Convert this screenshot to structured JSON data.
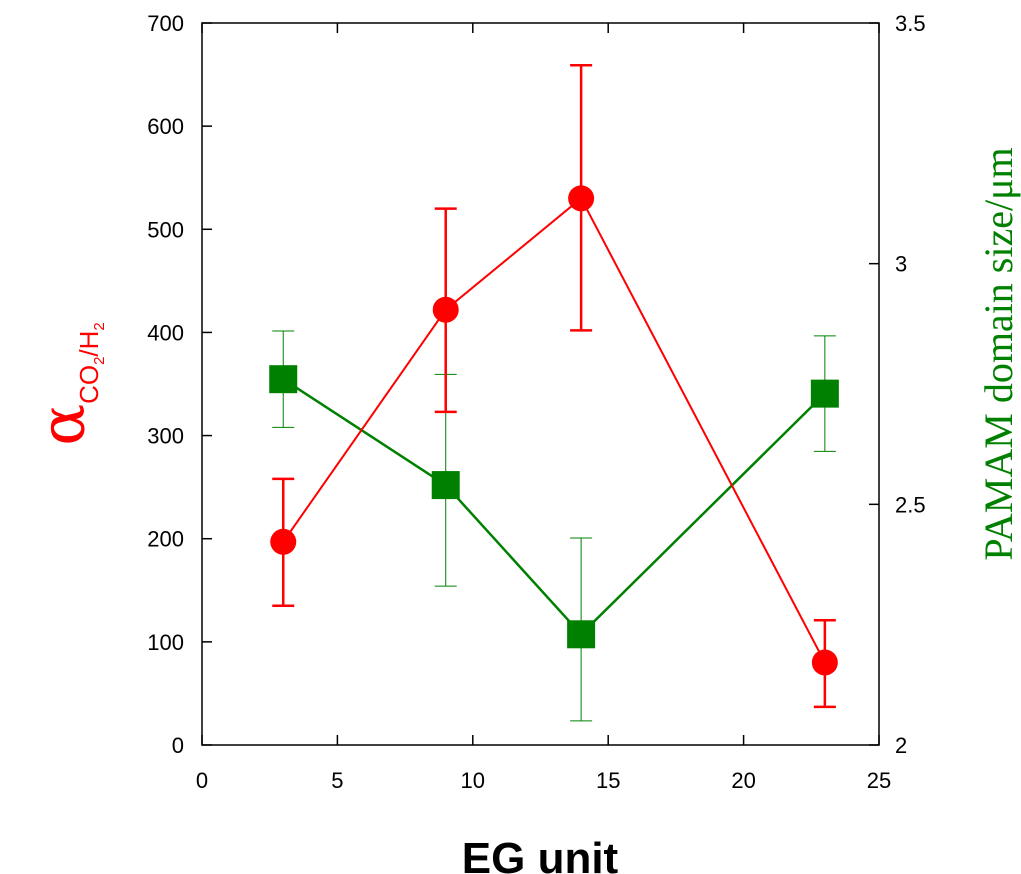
{
  "chart_data": {
    "type": "line",
    "xlabel": "EG unit",
    "ylabel": {
      "symbol": "α",
      "subscript_parts": [
        {
          "text": "CO",
          "sub": false
        },
        {
          "text": "2",
          "sub": true
        },
        {
          "text": "/H",
          "sub": false
        },
        {
          "text": "2",
          "sub": true
        }
      ]
    },
    "y2label": "PAMAM domain size/μm",
    "xlim": [
      0,
      25
    ],
    "ylim": [
      0,
      700
    ],
    "y2lim": [
      2,
      3.5
    ],
    "x_ticks": [
      0,
      5,
      10,
      15,
      20,
      25
    ],
    "x_tick_labels": [
      "0",
      "5",
      "10",
      "15",
      "20",
      "25"
    ],
    "y_ticks": [
      0,
      100,
      200,
      300,
      400,
      500,
      600,
      700
    ],
    "y_tick_labels": [
      "0",
      "100",
      "200",
      "300",
      "400",
      "500",
      "600",
      "700"
    ],
    "y2_ticks": [
      2,
      2.5,
      3,
      3.5
    ],
    "y2_tick_labels": [
      "2",
      "2.5",
      "3",
      "3.5"
    ],
    "grid": false,
    "series": [
      {
        "axis": "left",
        "marker": "circle",
        "color": "#ff0000",
        "x": [
          3,
          9,
          14,
          23
        ],
        "y": [
          197,
          422,
          530,
          80
        ],
        "err_low": [
          135,
          323,
          402,
          37
        ],
        "err_high": [
          258,
          520,
          659,
          121
        ]
      },
      {
        "axis": "right",
        "marker": "square",
        "color": "#008000",
        "x": [
          3,
          9,
          14,
          23
        ],
        "y": [
          2.76,
          2.54,
          2.23,
          2.73
        ],
        "err_low": [
          2.66,
          2.33,
          2.05,
          2.61
        ],
        "err_high": [
          2.86,
          2.77,
          2.43,
          2.85
        ]
      }
    ]
  }
}
